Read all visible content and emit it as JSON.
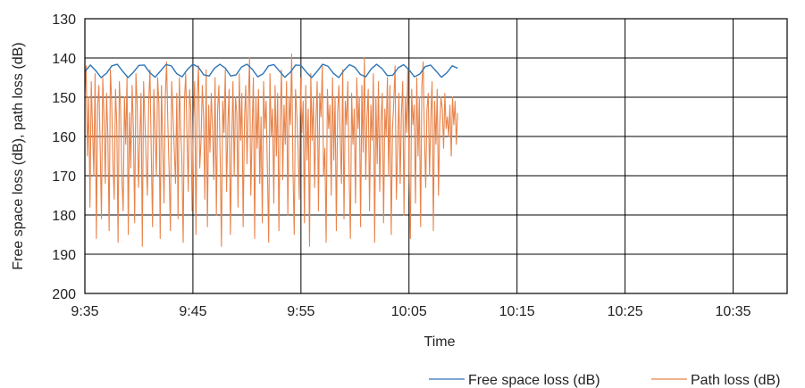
{
  "chart_data": {
    "type": "line",
    "title": "",
    "xlabel": "Time",
    "ylabel": "Free space loss (dB), path loss (dB)",
    "y_axis_reversed": true,
    "ylim": [
      130,
      200
    ],
    "yticks": [
      130,
      140,
      150,
      160,
      170,
      180,
      190,
      200
    ],
    "xticks": [
      "9:35",
      "9:45",
      "9:55",
      "10:05",
      "10:15",
      "10:25",
      "10:35"
    ],
    "xlim": [
      "9:35",
      "10:40"
    ],
    "grid": true,
    "legend_position": "bottom-right",
    "series": [
      {
        "name": "Free space loss (dB)",
        "color": "#2e75b6",
        "x": [
          "9:35",
          "9:35.5",
          "9:36",
          "9:36.5",
          "9:37",
          "9:37.5",
          "9:38",
          "9:38.5",
          "9:39",
          "9:39.5",
          "9:40",
          "9:40.5",
          "9:41",
          "9:41.5",
          "9:42",
          "9:42.5",
          "9:43",
          "9:43.5",
          "9:44",
          "9:44.5",
          "9:45",
          "9:45.5",
          "9:46",
          "9:46.5",
          "9:47",
          "9:47.5",
          "9:48",
          "9:48.5",
          "9:49",
          "9:49.5",
          "9:50",
          "9:50.5",
          "9:51",
          "9:51.5",
          "9:52",
          "9:52.5",
          "9:53",
          "9:53.5",
          "9:54",
          "9:54.5",
          "9:55",
          "9:55.5",
          "9:56",
          "9:56.5",
          "9:57",
          "9:57.5",
          "9:58",
          "9:58.5",
          "9:59",
          "9:59.5",
          "10:00",
          "10:00.5",
          "10:01",
          "10:01.5",
          "10:02",
          "10:02.5",
          "10:03",
          "10:03.5",
          "10:04",
          "10:04.5",
          "10:05",
          "10:05.5",
          "10:06",
          "10:06.5",
          "10:07",
          "10:07.5",
          "10:08",
          "10:08.5",
          "10:09",
          "10:09.5"
        ],
        "y": [
          143.5,
          141.8,
          143.2,
          145.0,
          143.9,
          142.0,
          141.6,
          143.4,
          145.0,
          143.6,
          141.9,
          141.8,
          143.7,
          144.9,
          143.3,
          141.7,
          142.0,
          144.0,
          144.8,
          142.9,
          141.6,
          142.3,
          144.3,
          144.6,
          142.6,
          141.6,
          142.6,
          144.6,
          144.3,
          142.3,
          141.6,
          142.9,
          144.8,
          144.0,
          142.0,
          141.7,
          143.3,
          144.9,
          143.7,
          141.8,
          141.9,
          143.6,
          145.0,
          143.4,
          141.6,
          142.1,
          143.9,
          145.0,
          143.1,
          141.7,
          142.4,
          144.2,
          144.8,
          142.8,
          141.6,
          142.7,
          144.5,
          144.4,
          142.5,
          141.7,
          143.0,
          144.8,
          144.1,
          142.2,
          141.8,
          143.3,
          144.9,
          143.8,
          142.0,
          142.6
        ]
      },
      {
        "name": "Path loss (dB)",
        "color": "#e8834a",
        "x_range": [
          "9:35",
          "10:09.5"
        ],
        "note_values": "dense high-frequency samples",
        "y_min_envelope": 188,
        "y_max_envelope": 139,
        "samples": [
          149,
          142,
          165,
          150,
          178,
          146,
          158,
          170,
          144,
          186,
          152,
          147,
          163,
          181,
          145,
          155,
          172,
          149,
          160,
          184,
          143,
          151,
          167,
          176,
          148,
          157,
          187,
          146,
          153,
          171,
          179,
          150,
          162,
          145,
          185,
          154,
          168,
          147,
          158,
          182,
          144,
          152,
          173,
          161,
          149,
          188,
          146,
          156,
          166,
          175,
          151,
          143,
          164,
          183,
          148,
          159,
          170,
          145,
          152,
          186,
          147,
          162,
          177,
          150,
          141,
          157,
          169,
          184,
          146,
          154,
          163,
          172,
          149,
          181,
          145,
          158,
          166,
          187,
          151,
          144,
          160,
          174,
          148,
          153,
          179,
          156,
          146,
          185,
          150,
          142,
          168,
          161,
          147,
          155,
          176,
          143,
          183,
          152,
          164,
          149,
          158,
          171,
          145,
          180,
          153,
          147,
          166,
          188,
          151,
          159,
          143,
          174,
          157,
          148,
          185,
          162,
          146,
          170,
          150,
          154,
          178,
          144,
          161,
          149,
          183,
          156,
          147,
          167,
          152,
          140,
          175,
          159,
          145,
          186,
          150,
          163,
          148,
          172,
          155,
          182,
          146,
          158,
          151,
          169,
          187,
          144,
          160,
          153,
          177,
          147,
          165,
          149,
          184,
          156,
          143,
          171,
          152,
          162,
          146,
          180,
          150,
          157,
          139,
          168,
          185,
          148,
          154,
          163,
          176,
          145,
          159,
          151,
          182,
          147,
          166,
          153,
          188,
          144,
          161,
          150,
          173,
          156,
          146,
          179,
          149,
          155,
          142,
          170,
          163,
          187,
          148,
          158,
          152,
          175,
          145,
          166,
          150,
          184,
          154,
          147,
          160,
          172,
          143,
          181,
          151,
          157,
          146,
          169,
          186,
          149,
          162,
          153,
          177,
          145,
          158,
          150,
          183,
          147,
          164,
          140,
          171,
          155,
          148,
          179,
          152,
          161,
          144,
          187,
          150,
          167,
          146,
          174,
          156,
          149,
          182,
          153,
          160,
          145,
          170,
          147,
          185,
          158,
          151,
          142,
          176,
          163,
          149,
          172,
          154,
          146,
          180,
          150,
          159,
          143,
          168,
          186,
          148,
          157,
          152,
          177,
          145,
          165,
          150,
          183,
          147,
          141,
          160,
          173,
          153,
          149,
          170,
          155,
          146,
          184,
          151,
          162,
          148,
          175,
          157,
          150,
          153,
          163,
          149,
          158,
          155,
          160,
          152,
          165,
          150,
          157,
          151,
          162,
          154
        ]
      }
    ]
  },
  "legend": {
    "items": [
      {
        "label": "Free space loss (dB)",
        "color": "#2e75b6"
      },
      {
        "label": "Path loss (dB)",
        "color": "#e8834a"
      }
    ]
  }
}
